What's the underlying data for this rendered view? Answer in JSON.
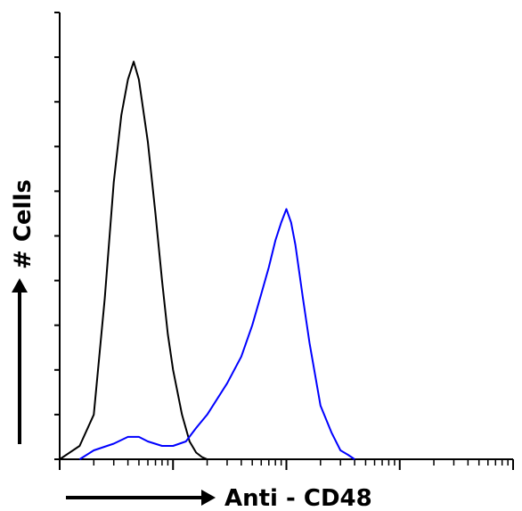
{
  "chart_data": {
    "type": "line",
    "chart_kind": "flow cytometry overlay histogram",
    "xlabel": "Anti - CD48",
    "ylabel": "# Cells",
    "x_scale": "log",
    "xlim": [
      0.1,
      1000
    ],
    "ylim": [
      0,
      100
    ],
    "grid": false,
    "legend": "none",
    "series": [
      {
        "color": "#000000",
        "x": [
          0.1,
          0.15,
          0.2,
          0.25,
          0.3,
          0.35,
          0.4,
          0.45,
          0.5,
          0.6,
          0.7,
          0.8,
          0.9,
          1.0,
          1.2,
          1.4,
          1.6,
          1.8,
          2.0
        ],
        "values": [
          0,
          3,
          10,
          36,
          62,
          77,
          85,
          89,
          85,
          71,
          55,
          40,
          28,
          20,
          10,
          4,
          1.5,
          0.5,
          0
        ]
      },
      {
        "color": "#0000ff",
        "x": [
          0.15,
          0.2,
          0.3,
          0.4,
          0.5,
          0.6,
          0.8,
          1.0,
          1.3,
          1.6,
          2.0,
          3.0,
          4.0,
          5.0,
          6.0,
          7.0,
          8.0,
          9.0,
          10.0,
          11.0,
          12.0,
          14.0,
          16.0,
          20.0,
          25.0,
          30.0,
          35.0,
          40.0
        ],
        "values": [
          0,
          2,
          3.5,
          5,
          5,
          4,
          3,
          3,
          4,
          7,
          10,
          17,
          23,
          30,
          37,
          43,
          49,
          53,
          56,
          53,
          48,
          36,
          26,
          12,
          6,
          2,
          1,
          0
        ]
      }
    ]
  }
}
